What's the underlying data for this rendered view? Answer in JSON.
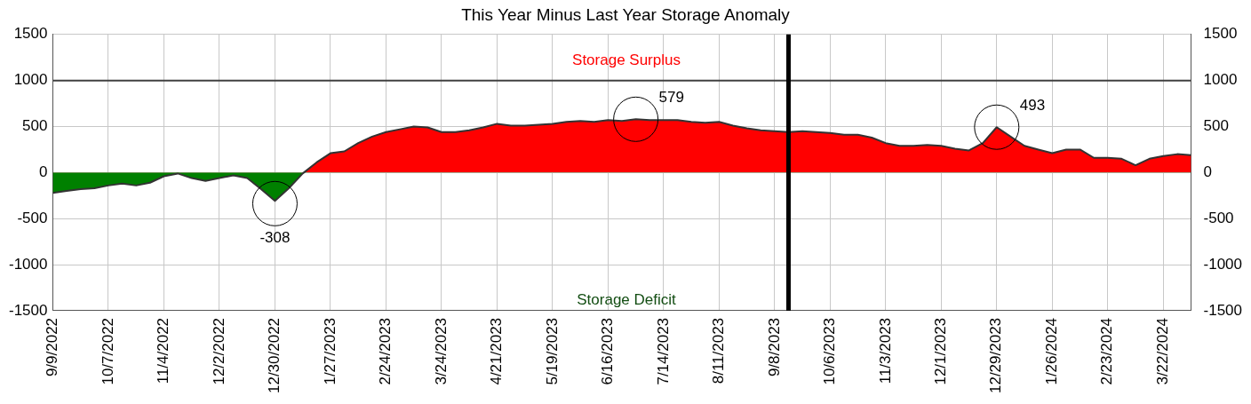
{
  "chart_data": {
    "type": "area",
    "title": "This Year Minus Last Year Storage Anomaly",
    "x": [
      "2022-09-09",
      "2022-09-16",
      "2022-09-23",
      "2022-09-30",
      "2022-10-07",
      "2022-10-14",
      "2022-10-21",
      "2022-10-28",
      "2022-11-04",
      "2022-11-11",
      "2022-11-18",
      "2022-11-25",
      "2022-12-02",
      "2022-12-09",
      "2022-12-16",
      "2022-12-23",
      "2022-12-30",
      "2023-01-06",
      "2023-01-13",
      "2023-01-20",
      "2023-01-27",
      "2023-02-03",
      "2023-02-10",
      "2023-02-17",
      "2023-02-24",
      "2023-03-03",
      "2023-03-10",
      "2023-03-17",
      "2023-03-24",
      "2023-03-31",
      "2023-04-07",
      "2023-04-14",
      "2023-04-21",
      "2023-04-28",
      "2023-05-05",
      "2023-05-12",
      "2023-05-19",
      "2023-05-26",
      "2023-06-02",
      "2023-06-09",
      "2023-06-16",
      "2023-06-23",
      "2023-06-30",
      "2023-07-07",
      "2023-07-14",
      "2023-07-21",
      "2023-07-28",
      "2023-08-04",
      "2023-08-11",
      "2023-08-18",
      "2023-08-25",
      "2023-09-01",
      "2023-09-08",
      "2023-09-15",
      "2023-09-22",
      "2023-09-29",
      "2023-10-06",
      "2023-10-13",
      "2023-10-20",
      "2023-10-27",
      "2023-11-03",
      "2023-11-10",
      "2023-11-17",
      "2023-11-24",
      "2023-12-01",
      "2023-12-08",
      "2023-12-15",
      "2023-12-22",
      "2023-12-29",
      "2024-01-05",
      "2024-01-12",
      "2024-01-19",
      "2024-01-26",
      "2024-02-02",
      "2024-02-09",
      "2024-02-16",
      "2024-02-23",
      "2024-03-01",
      "2024-03-08",
      "2024-03-15",
      "2024-03-22",
      "2024-03-29",
      "2024-04-05"
    ],
    "series": [
      {
        "color": "#ff0000",
        "values": [
          -220,
          -200,
          -180,
          -170,
          -140,
          -120,
          -140,
          -110,
          -40,
          -10,
          -60,
          -90,
          -60,
          -30,
          -60,
          -180,
          -308,
          -170,
          -10,
          110,
          210,
          230,
          320,
          390,
          440,
          470,
          500,
          490,
          440,
          440,
          460,
          490,
          530,
          510,
          510,
          520,
          530,
          550,
          560,
          550,
          570,
          560,
          579,
          570,
          570,
          570,
          550,
          540,
          550,
          510,
          480,
          460,
          450,
          440,
          450,
          440,
          430,
          410,
          410,
          380,
          320,
          290,
          290,
          300,
          290,
          260,
          240,
          320,
          493,
          390,
          290,
          250,
          210,
          250,
          250,
          160,
          160,
          150,
          80,
          150,
          180,
          200,
          190
        ]
      }
    ],
    "xlim": [
      "2022-09-09",
      "2024-04-05"
    ],
    "xticks": [
      {
        "value": "2022-09-09",
        "label": "9/9/2022"
      },
      {
        "value": "2022-10-07",
        "label": "10/7/2022"
      },
      {
        "value": "2022-11-04",
        "label": "11/4/2022"
      },
      {
        "value": "2022-12-02",
        "label": "12/2/2022"
      },
      {
        "value": "2022-12-30",
        "label": "12/30/2022"
      },
      {
        "value": "2023-01-27",
        "label": "1/27/2023"
      },
      {
        "value": "2023-02-24",
        "label": "2/24/2023"
      },
      {
        "value": "2023-03-24",
        "label": "3/24/2023"
      },
      {
        "value": "2023-04-21",
        "label": "4/21/2023"
      },
      {
        "value": "2023-05-19",
        "label": "5/19/2023"
      },
      {
        "value": "2023-06-16",
        "label": "6/16/2023"
      },
      {
        "value": "2023-07-14",
        "label": "7/14/2023"
      },
      {
        "value": "2023-08-11",
        "label": "8/11/2023"
      },
      {
        "value": "2023-09-08",
        "label": "9/8/2023"
      },
      {
        "value": "2023-10-06",
        "label": "10/6/2023"
      },
      {
        "value": "2023-11-03",
        "label": "11/3/2023"
      },
      {
        "value": "2023-12-01",
        "label": "12/1/2023"
      },
      {
        "value": "2023-12-29",
        "label": "12/29/2023"
      },
      {
        "value": "2024-01-26",
        "label": "1/26/2024"
      },
      {
        "value": "2024-02-23",
        "label": "2/23/2024"
      },
      {
        "value": "2024-03-22",
        "label": "3/22/2024"
      }
    ],
    "ylim": [
      -1500,
      1500
    ],
    "yticks": [
      -1500,
      -1000,
      -500,
      0,
      500,
      1000,
      1500
    ],
    "y2lim": [
      -1500,
      1500
    ],
    "y2ticks": [
      -1500,
      -1000,
      -500,
      0,
      500,
      1000,
      1500
    ],
    "grid": true,
    "legend": false,
    "marker": "none",
    "line_style": "solid",
    "ref_lines": [
      {
        "axis": "y",
        "value": 1000,
        "color": "#404040"
      },
      {
        "axis": "x",
        "value": "2023-09-15",
        "color": "#000000"
      }
    ],
    "annotations": [
      "Storage Surplus",
      "Storage Deficit",
      {
        "text": "579",
        "x": "2023-06-30",
        "y": 579
      },
      {
        "text": "-308",
        "x": "2022-12-30",
        "y": -308
      },
      {
        "text": "493",
        "x": "2023-12-29",
        "y": 493
      }
    ]
  }
}
